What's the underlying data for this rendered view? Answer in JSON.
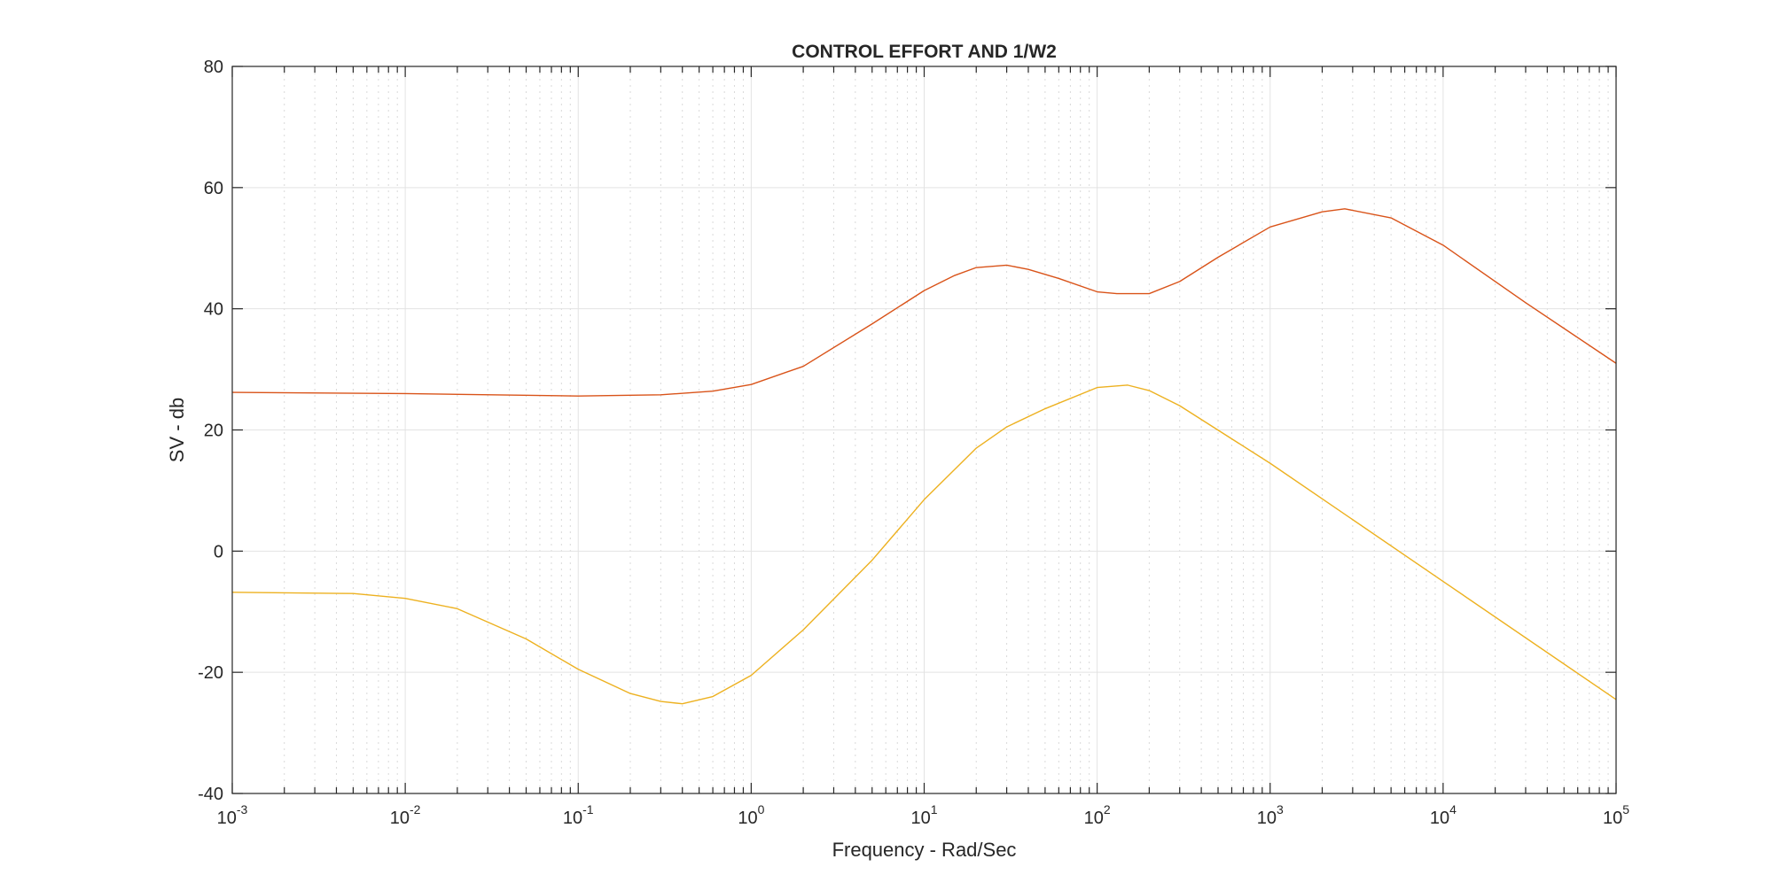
{
  "chart_data": {
    "type": "line",
    "title": "CONTROL EFFORT AND 1/W2",
    "xlabel": "Frequency - Rad/Sec",
    "ylabel": "SV - db",
    "xscale": "log",
    "xlim": [
      0.001,
      100000
    ],
    "ylim": [
      -40,
      80
    ],
    "grid": true,
    "legend": "none",
    "x_ticks": [
      {
        "base": "10",
        "exp": "-3"
      },
      {
        "base": "10",
        "exp": "-2"
      },
      {
        "base": "10",
        "exp": "-1"
      },
      {
        "base": "10",
        "exp": "0"
      },
      {
        "base": "10",
        "exp": "1"
      },
      {
        "base": "10",
        "exp": "2"
      },
      {
        "base": "10",
        "exp": "3"
      },
      {
        "base": "10",
        "exp": "4"
      },
      {
        "base": "10",
        "exp": "5"
      }
    ],
    "y_ticks": [
      "-40",
      "-20",
      "0",
      "20",
      "40",
      "60",
      "80"
    ],
    "series": [
      {
        "color": "#D95319",
        "x": [
          0.001,
          0.01,
          0.1,
          0.3,
          0.6,
          1,
          2,
          5,
          10,
          15,
          20,
          30,
          40,
          60,
          100,
          130,
          200,
          300,
          500,
          1000,
          2000,
          2700,
          5000,
          10000,
          30000,
          100000
        ],
        "y": [
          26.2,
          26.0,
          25.6,
          25.8,
          26.4,
          27.5,
          30.5,
          37.5,
          43.0,
          45.5,
          46.8,
          47.2,
          46.5,
          45.0,
          42.8,
          42.5,
          42.5,
          44.5,
          48.5,
          53.5,
          56.0,
          56.5,
          55.0,
          50.5,
          41.0,
          31.0
        ]
      },
      {
        "color": "#EDB120",
        "x": [
          0.001,
          0.005,
          0.01,
          0.02,
          0.05,
          0.1,
          0.2,
          0.3,
          0.4,
          0.6,
          1,
          2,
          5,
          10,
          20,
          30,
          50,
          100,
          150,
          200,
          300,
          1000,
          10000,
          100000
        ],
        "y": [
          -6.8,
          -7.0,
          -7.8,
          -9.5,
          -14.5,
          -19.5,
          -23.5,
          -24.8,
          -25.2,
          -24.0,
          -20.5,
          -13.0,
          -1.5,
          8.5,
          17.0,
          20.5,
          23.5,
          27.0,
          27.4,
          26.5,
          24.0,
          14.5,
          -5.0,
          -24.5
        ]
      }
    ]
  }
}
